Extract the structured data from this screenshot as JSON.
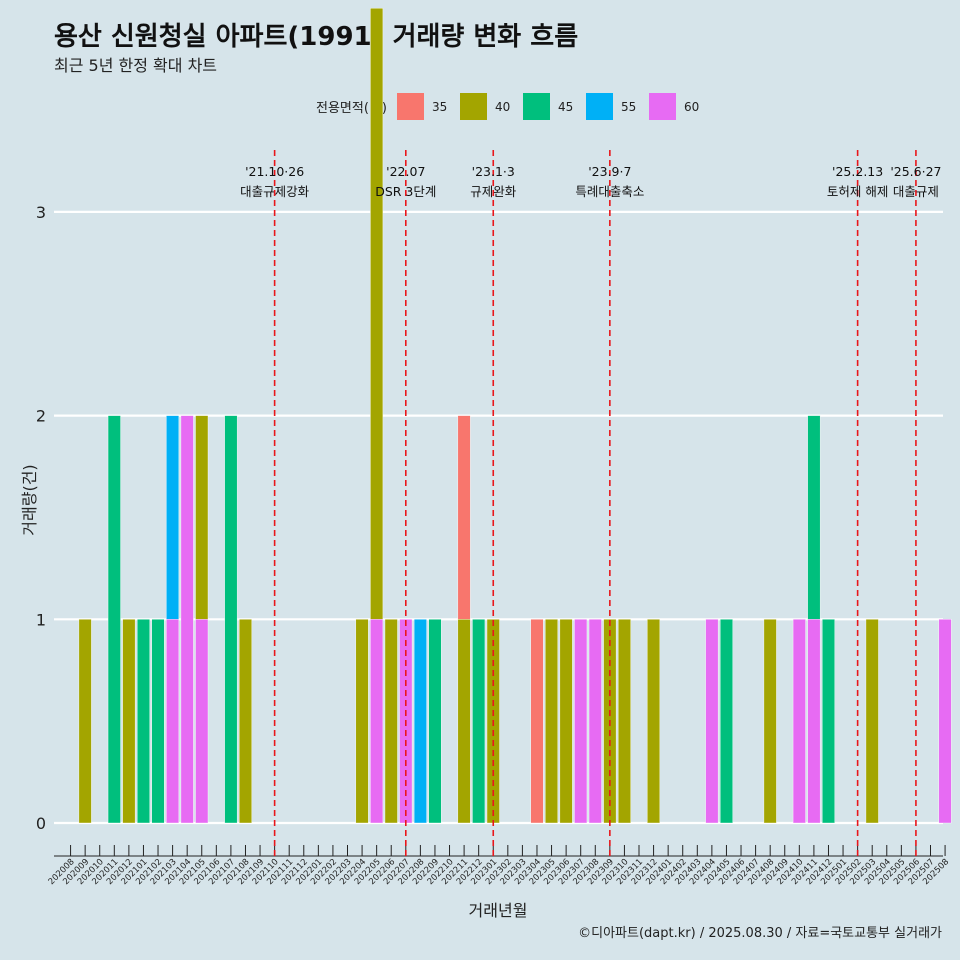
{
  "title": "용산 신원청실 아파트(1991) 거래량 변화 흐름",
  "subtitle": "최근 5년 한정 확대 차트",
  "caption": "©디아파트(dapt.kr) / 2025.08.30 / 자료=국토교통부 실거래가",
  "legend": {
    "title": "전용면적(㎡)",
    "items": [
      {
        "label": "35",
        "color": "#f8766d"
      },
      {
        "label": "40",
        "color": "#a3a500"
      },
      {
        "label": "45",
        "color": "#00bf7d"
      },
      {
        "label": "55",
        "color": "#00b0f6"
      },
      {
        "label": "60",
        "color": "#e76bf3"
      }
    ]
  },
  "chart_data": {
    "type": "bar",
    "stacked": true,
    "xlabel": "거래년월",
    "ylabel": "거래량(건)",
    "ylim": [
      0,
      3
    ],
    "yticks": [
      0,
      1,
      2,
      3
    ],
    "grid": true,
    "legend_position": "top",
    "categories": [
      "202008",
      "202009",
      "202010",
      "202011",
      "202012",
      "202101",
      "202102",
      "202103",
      "202104",
      "202105",
      "202106",
      "202107",
      "202108",
      "202109",
      "202110",
      "202111",
      "202112",
      "202201",
      "202202",
      "202203",
      "202204",
      "202205",
      "202206",
      "202207",
      "202208",
      "202209",
      "202210",
      "202211",
      "202212",
      "202301",
      "202302",
      "202303",
      "202304",
      "202305",
      "202306",
      "202307",
      "202308",
      "202309",
      "202310",
      "202311",
      "202312",
      "202401",
      "202402",
      "202403",
      "202404",
      "202405",
      "202406",
      "202407",
      "202408",
      "202409",
      "202410",
      "202411",
      "202412",
      "202501",
      "202502",
      "202503",
      "202504",
      "202505",
      "202506",
      "202507",
      "202508"
    ],
    "bars": [
      {
        "month": "202009",
        "size": "40",
        "count": 1
      },
      {
        "month": "202011",
        "size": "45",
        "count": 2
      },
      {
        "month": "202012",
        "size": "40",
        "count": 1
      },
      {
        "month": "202101",
        "size": "45",
        "count": 1
      },
      {
        "month": "202102",
        "size": "45",
        "count": 1
      },
      {
        "month": "202103",
        "size": "55",
        "count": 1
      },
      {
        "month": "202103",
        "size": "60",
        "count": 1
      },
      {
        "month": "202104",
        "size": "60",
        "count": 2
      },
      {
        "month": "202105",
        "size": "40",
        "count": 1
      },
      {
        "month": "202105",
        "size": "60",
        "count": 1
      },
      {
        "month": "202107",
        "size": "45",
        "count": 2
      },
      {
        "month": "202108",
        "size": "40",
        "count": 1
      },
      {
        "month": "202204",
        "size": "40",
        "count": 1
      },
      {
        "month": "202205",
        "size": "40",
        "count": 3
      },
      {
        "month": "202205",
        "size": "60",
        "count": 1
      },
      {
        "month": "202206",
        "size": "40",
        "count": 1
      },
      {
        "month": "202207",
        "size": "60",
        "count": 1
      },
      {
        "month": "202208",
        "size": "55",
        "count": 1
      },
      {
        "month": "202209",
        "size": "45",
        "count": 1
      },
      {
        "month": "202211",
        "size": "35",
        "count": 1
      },
      {
        "month": "202211",
        "size": "40",
        "count": 1
      },
      {
        "month": "202212",
        "size": "45",
        "count": 1
      },
      {
        "month": "202301",
        "size": "40",
        "count": 1
      },
      {
        "month": "202304",
        "size": "35",
        "count": 1
      },
      {
        "month": "202305",
        "size": "40",
        "count": 1
      },
      {
        "month": "202306",
        "size": "40",
        "count": 1
      },
      {
        "month": "202307",
        "size": "60",
        "count": 1
      },
      {
        "month": "202308",
        "size": "60",
        "count": 1
      },
      {
        "month": "202309",
        "size": "40",
        "count": 1
      },
      {
        "month": "202310",
        "size": "40",
        "count": 1
      },
      {
        "month": "202312",
        "size": "40",
        "count": 1
      },
      {
        "month": "202404",
        "size": "60",
        "count": 1
      },
      {
        "month": "202405",
        "size": "45",
        "count": 1
      },
      {
        "month": "202408",
        "size": "40",
        "count": 1
      },
      {
        "month": "202410",
        "size": "60",
        "count": 1
      },
      {
        "month": "202411",
        "size": "45",
        "count": 1
      },
      {
        "month": "202411",
        "size": "60",
        "count": 1
      },
      {
        "month": "202412",
        "size": "45",
        "count": 1
      },
      {
        "month": "202503",
        "size": "40",
        "count": 1
      },
      {
        "month": "202508",
        "size": "60",
        "count": 1
      }
    ],
    "annotations": [
      {
        "month": "202110",
        "date": "'21.10·26",
        "label": "대출규제강화",
        "line_color": "#e8161b"
      },
      {
        "month": "202207",
        "date": "'22.07",
        "label": "DSR 3단계",
        "line_color": "#e8161b"
      },
      {
        "month": "202301",
        "date": "'23.1·3",
        "label": "규제완화",
        "line_color": "#e8161b"
      },
      {
        "month": "202309",
        "date": "'23.9·7",
        "label": "특례대출축소",
        "line_color": "#e8161b"
      },
      {
        "month": "202502",
        "date": "'25.2.13",
        "label": "토허제 해제",
        "line_color": "#e8161b"
      },
      {
        "month": "202506",
        "date": "'25.6·27",
        "label": "대출규제",
        "line_color": "#e8161b"
      }
    ]
  }
}
